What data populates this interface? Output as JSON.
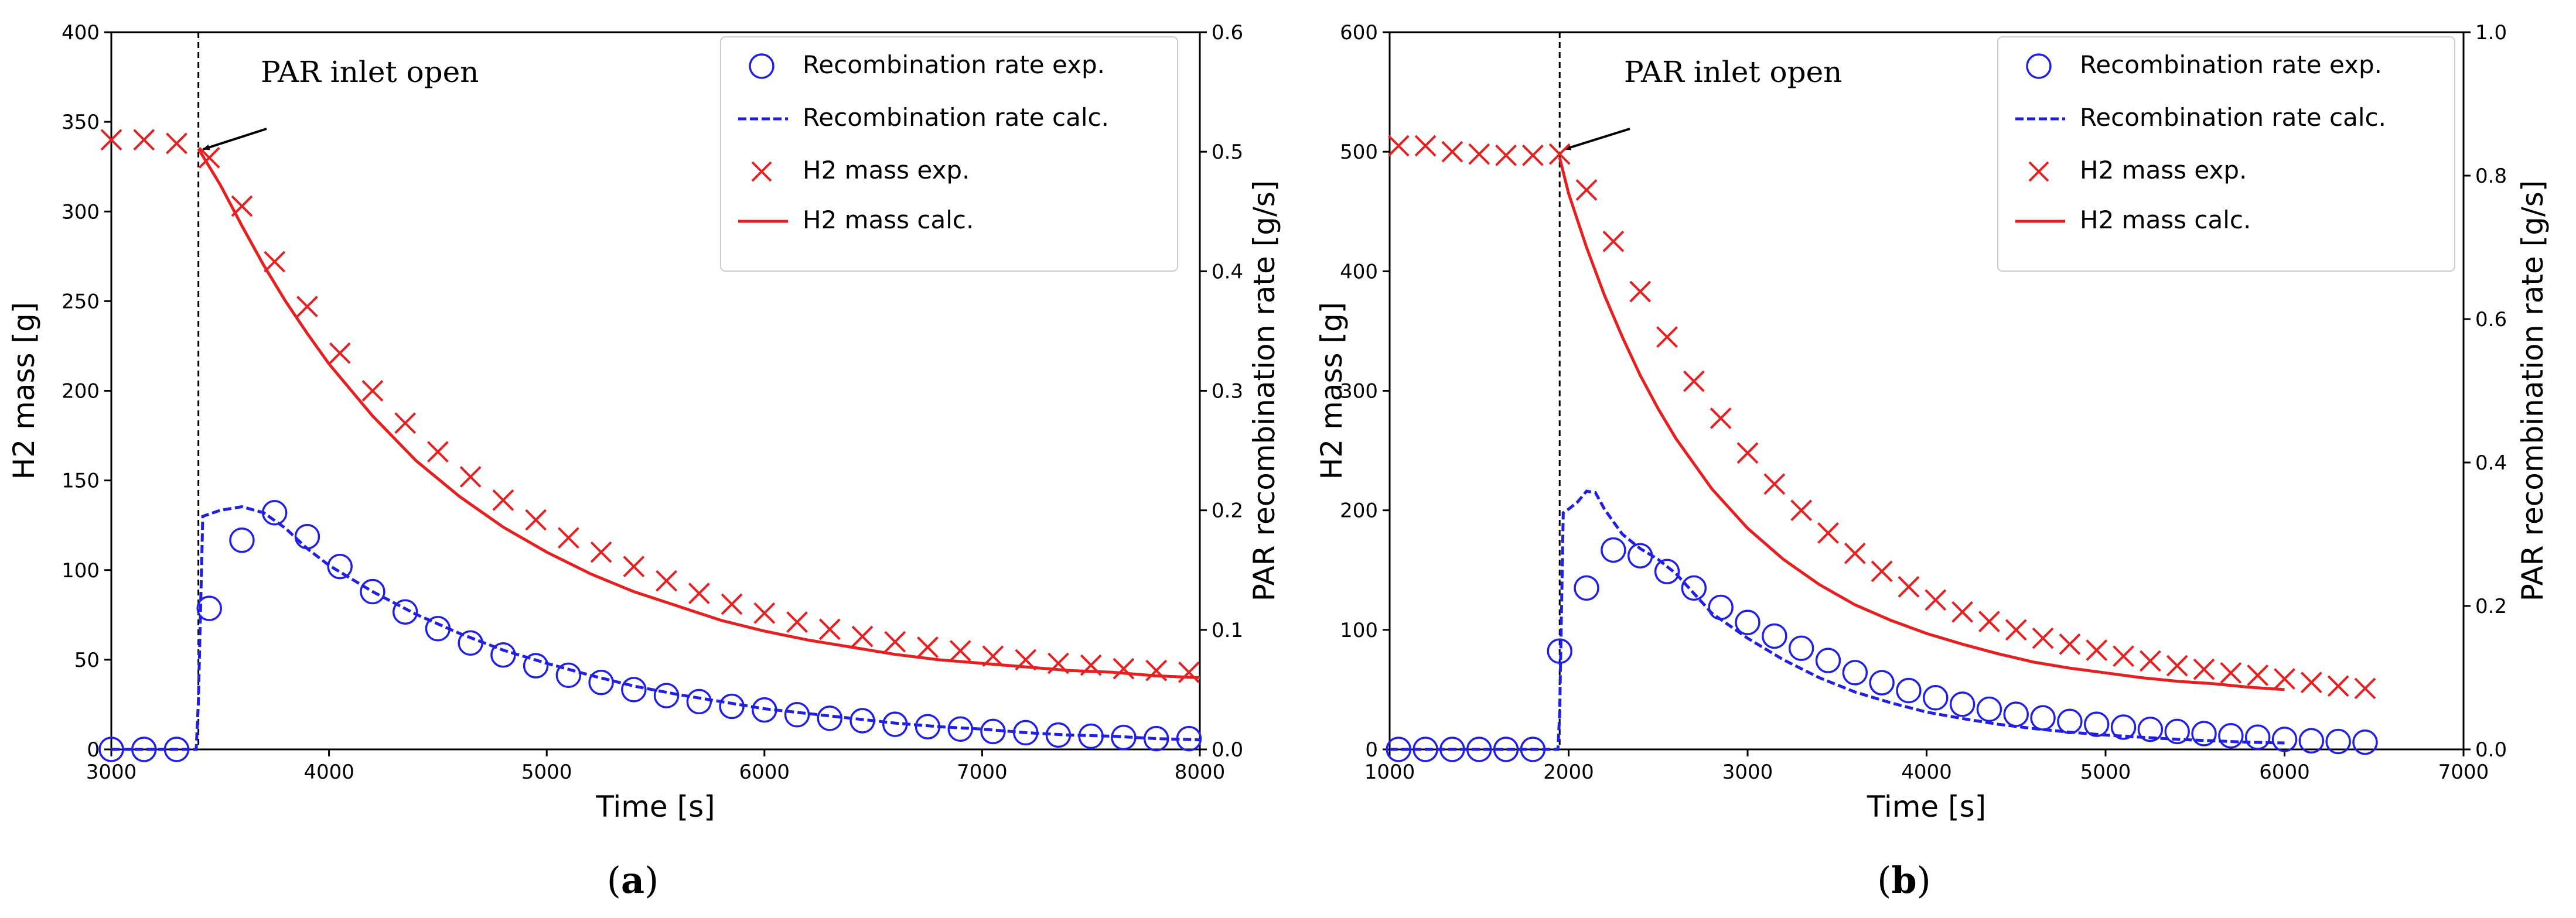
{
  "chart_data": [
    {
      "type": "line",
      "panel_label": "a",
      "caption": {
        "open": "(",
        "letter": "a",
        "close": ")"
      },
      "xlabel": "Time [s]",
      "ylabel_left": "H2 mass [g]",
      "ylabel_right": "PAR recombination rate [g/s]",
      "xlim": [
        3000,
        8000
      ],
      "ylim_left": [
        0,
        400
      ],
      "ylim_right": [
        0,
        0.6
      ],
      "xticks": [
        "3000",
        "4000",
        "5000",
        "6000",
        "7000",
        "8000"
      ],
      "yticks_left": [
        "0",
        "50",
        "100",
        "150",
        "200",
        "250",
        "300",
        "350",
        "400"
      ],
      "yticks_right": [
        "0.0",
        "0.1",
        "0.2",
        "0.3",
        "0.4",
        "0.5",
        "0.6"
      ],
      "annotation": {
        "text": "PAR inlet open",
        "x": 3400
      },
      "legend": [
        "Recombination rate exp.",
        "Recombination rate calc.",
        "H2 mass exp.",
        "H2 mass calc."
      ],
      "colors": {
        "rate": "#1f1fe6",
        "mass": "#e62020"
      },
      "series": [
        {
          "name": "Recombination rate exp.",
          "axis": "right",
          "style": "circle",
          "x": [
            3000,
            3150,
            3300,
            3450,
            3600,
            3750,
            3900,
            4050,
            4200,
            4350,
            4500,
            4650,
            4800,
            4950,
            5100,
            5250,
            5400,
            5550,
            5700,
            5850,
            6000,
            6150,
            6300,
            6450,
            6600,
            6750,
            6900,
            7050,
            7200,
            7350,
            7500,
            7650,
            7800,
            7950
          ],
          "y": [
            0.0,
            0.0,
            0.0,
            0.118,
            0.175,
            0.198,
            0.178,
            0.153,
            0.132,
            0.115,
            0.101,
            0.089,
            0.079,
            0.07,
            0.062,
            0.056,
            0.05,
            0.045,
            0.04,
            0.036,
            0.033,
            0.029,
            0.026,
            0.024,
            0.021,
            0.019,
            0.017,
            0.015,
            0.014,
            0.012,
            0.011,
            0.01,
            0.009,
            0.009
          ]
        },
        {
          "name": "Recombination rate calc.",
          "axis": "right",
          "style": "dashed",
          "x": [
            3000,
            3390,
            3400,
            3420,
            3500,
            3600,
            3700,
            3800,
            3900,
            4000,
            4200,
            4400,
            4600,
            4800,
            5000,
            5200,
            5400,
            5600,
            5800,
            6000,
            6200,
            6400,
            6600,
            6800,
            7000,
            7200,
            7400,
            7600,
            7800,
            8000
          ],
          "y": [
            0.0,
            0.0,
            0.04,
            0.195,
            0.2,
            0.203,
            0.198,
            0.185,
            0.168,
            0.154,
            0.132,
            0.113,
            0.097,
            0.083,
            0.072,
            0.062,
            0.053,
            0.046,
            0.04,
            0.034,
            0.03,
            0.026,
            0.022,
            0.019,
            0.017,
            0.014,
            0.012,
            0.011,
            0.009,
            0.008
          ]
        },
        {
          "name": "H2 mass exp.",
          "axis": "left",
          "style": "x",
          "x": [
            3000,
            3150,
            3300,
            3450,
            3600,
            3750,
            3900,
            4050,
            4200,
            4350,
            4500,
            4650,
            4800,
            4950,
            5100,
            5250,
            5400,
            5550,
            5700,
            5850,
            6000,
            6150,
            6300,
            6450,
            6600,
            6750,
            6900,
            7050,
            7200,
            7350,
            7500,
            7650,
            7800,
            7950
          ],
          "y": [
            340,
            340,
            338,
            330,
            303,
            272,
            247,
            221,
            200,
            182,
            166,
            152,
            139,
            128,
            118,
            110,
            102,
            94,
            87,
            81,
            76,
            71,
            67,
            63,
            60,
            57,
            55,
            52,
            50,
            48,
            47,
            45,
            44,
            43
          ]
        },
        {
          "name": "H2 mass calc.",
          "axis": "left",
          "style": "solid",
          "x": [
            3400,
            3500,
            3600,
            3700,
            3800,
            3900,
            4000,
            4200,
            4400,
            4600,
            4800,
            5000,
            5200,
            5400,
            5600,
            5800,
            6000,
            6200,
            6400,
            6600,
            6800,
            7000,
            7200,
            7400,
            7600,
            7800,
            8000
          ],
          "y": [
            335,
            315,
            292,
            270,
            250,
            232,
            215,
            186,
            161,
            141,
            124,
            110,
            98,
            88,
            80,
            72,
            66,
            61,
            57,
            53,
            50,
            48,
            46,
            44,
            43,
            41,
            40
          ]
        }
      ]
    },
    {
      "type": "line",
      "panel_label": "b",
      "caption": {
        "open": "(",
        "letter": "b",
        "close": ")"
      },
      "xlabel": "Time [s]",
      "ylabel_left": "H2 mass [g]",
      "ylabel_right": "PAR recombination rate [g/s]",
      "xlim": [
        1000,
        7000
      ],
      "ylim_left": [
        0,
        600
      ],
      "ylim_right": [
        0,
        1.0
      ],
      "xticks": [
        "1000",
        "2000",
        "3000",
        "4000",
        "5000",
        "6000",
        "7000"
      ],
      "yticks_left": [
        "0",
        "100",
        "200",
        "300",
        "400",
        "500",
        "600"
      ],
      "yticks_right": [
        "0.0",
        "0.2",
        "0.4",
        "0.6",
        "0.8",
        "1.0"
      ],
      "annotation": {
        "text": "PAR inlet open",
        "x": 1950
      },
      "legend": [
        "Recombination rate exp.",
        "Recombination rate calc.",
        "H2 mass exp.",
        "H2 mass calc."
      ],
      "colors": {
        "rate": "#1f1fe6",
        "mass": "#e62020"
      },
      "series": [
        {
          "name": "Recombination rate exp.",
          "axis": "right",
          "style": "circle",
          "x": [
            1050,
            1200,
            1350,
            1500,
            1650,
            1800,
            1950,
            2100,
            2250,
            2400,
            2550,
            2700,
            2850,
            3000,
            3150,
            3300,
            3450,
            3600,
            3750,
            3900,
            4050,
            4200,
            4350,
            4500,
            4650,
            4800,
            4950,
            5100,
            5250,
            5400,
            5550,
            5700,
            5850,
            6000,
            6150,
            6300,
            6450
          ],
          "y": [
            0.0,
            0.0,
            0.0,
            0.0,
            0.0,
            0.0,
            0.137,
            0.225,
            0.278,
            0.27,
            0.248,
            0.225,
            0.198,
            0.177,
            0.158,
            0.141,
            0.124,
            0.107,
            0.093,
            0.082,
            0.072,
            0.063,
            0.056,
            0.049,
            0.044,
            0.039,
            0.035,
            0.031,
            0.028,
            0.025,
            0.022,
            0.019,
            0.017,
            0.014,
            0.012,
            0.011,
            0.01
          ]
        },
        {
          "name": "Recombination rate calc.",
          "axis": "right",
          "style": "dashed",
          "x": [
            1000,
            1940,
            1950,
            1970,
            2000,
            2050,
            2100,
            2150,
            2200,
            2300,
            2400,
            2500,
            2600,
            2800,
            3000,
            3200,
            3400,
            3600,
            3800,
            4000,
            4200,
            4400,
            4600,
            4800,
            5000,
            5200,
            5400,
            5600,
            5800,
            6000
          ],
          "y": [
            0.0,
            0.0,
            0.05,
            0.33,
            0.335,
            0.345,
            0.36,
            0.358,
            0.335,
            0.3,
            0.28,
            0.265,
            0.245,
            0.19,
            0.155,
            0.125,
            0.1,
            0.08,
            0.065,
            0.052,
            0.043,
            0.035,
            0.029,
            0.024,
            0.02,
            0.017,
            0.014,
            0.012,
            0.01,
            0.009
          ]
        },
        {
          "name": "H2 mass exp.",
          "axis": "left",
          "style": "x",
          "x": [
            1050,
            1200,
            1350,
            1500,
            1650,
            1800,
            1950,
            2100,
            2250,
            2400,
            2550,
            2700,
            2850,
            3000,
            3150,
            3300,
            3450,
            3600,
            3750,
            3900,
            4050,
            4200,
            4350,
            4500,
            4650,
            4800,
            4950,
            5100,
            5250,
            5400,
            5550,
            5700,
            5850,
            6000,
            6150,
            6300,
            6450
          ],
          "y": [
            505,
            505,
            500,
            498,
            497,
            497,
            498,
            468,
            425,
            383,
            345,
            308,
            277,
            248,
            222,
            200,
            181,
            164,
            149,
            136,
            125,
            115,
            107,
            100,
            93,
            88,
            83,
            78,
            74,
            70,
            67,
            64,
            62,
            59,
            56,
            53,
            51
          ]
        },
        {
          "name": "H2 mass calc.",
          "axis": "left",
          "style": "solid",
          "x": [
            1950,
            2000,
            2100,
            2200,
            2300,
            2400,
            2500,
            2600,
            2800,
            3000,
            3200,
            3400,
            3600,
            3800,
            4000,
            4200,
            4400,
            4600,
            4800,
            5000,
            5200,
            5400,
            5600,
            5800,
            6000
          ],
          "y": [
            495,
            465,
            420,
            380,
            345,
            313,
            285,
            260,
            218,
            185,
            159,
            138,
            121,
            108,
            97,
            88,
            80,
            73,
            68,
            64,
            60,
            57,
            55,
            52,
            50
          ]
        }
      ]
    }
  ]
}
